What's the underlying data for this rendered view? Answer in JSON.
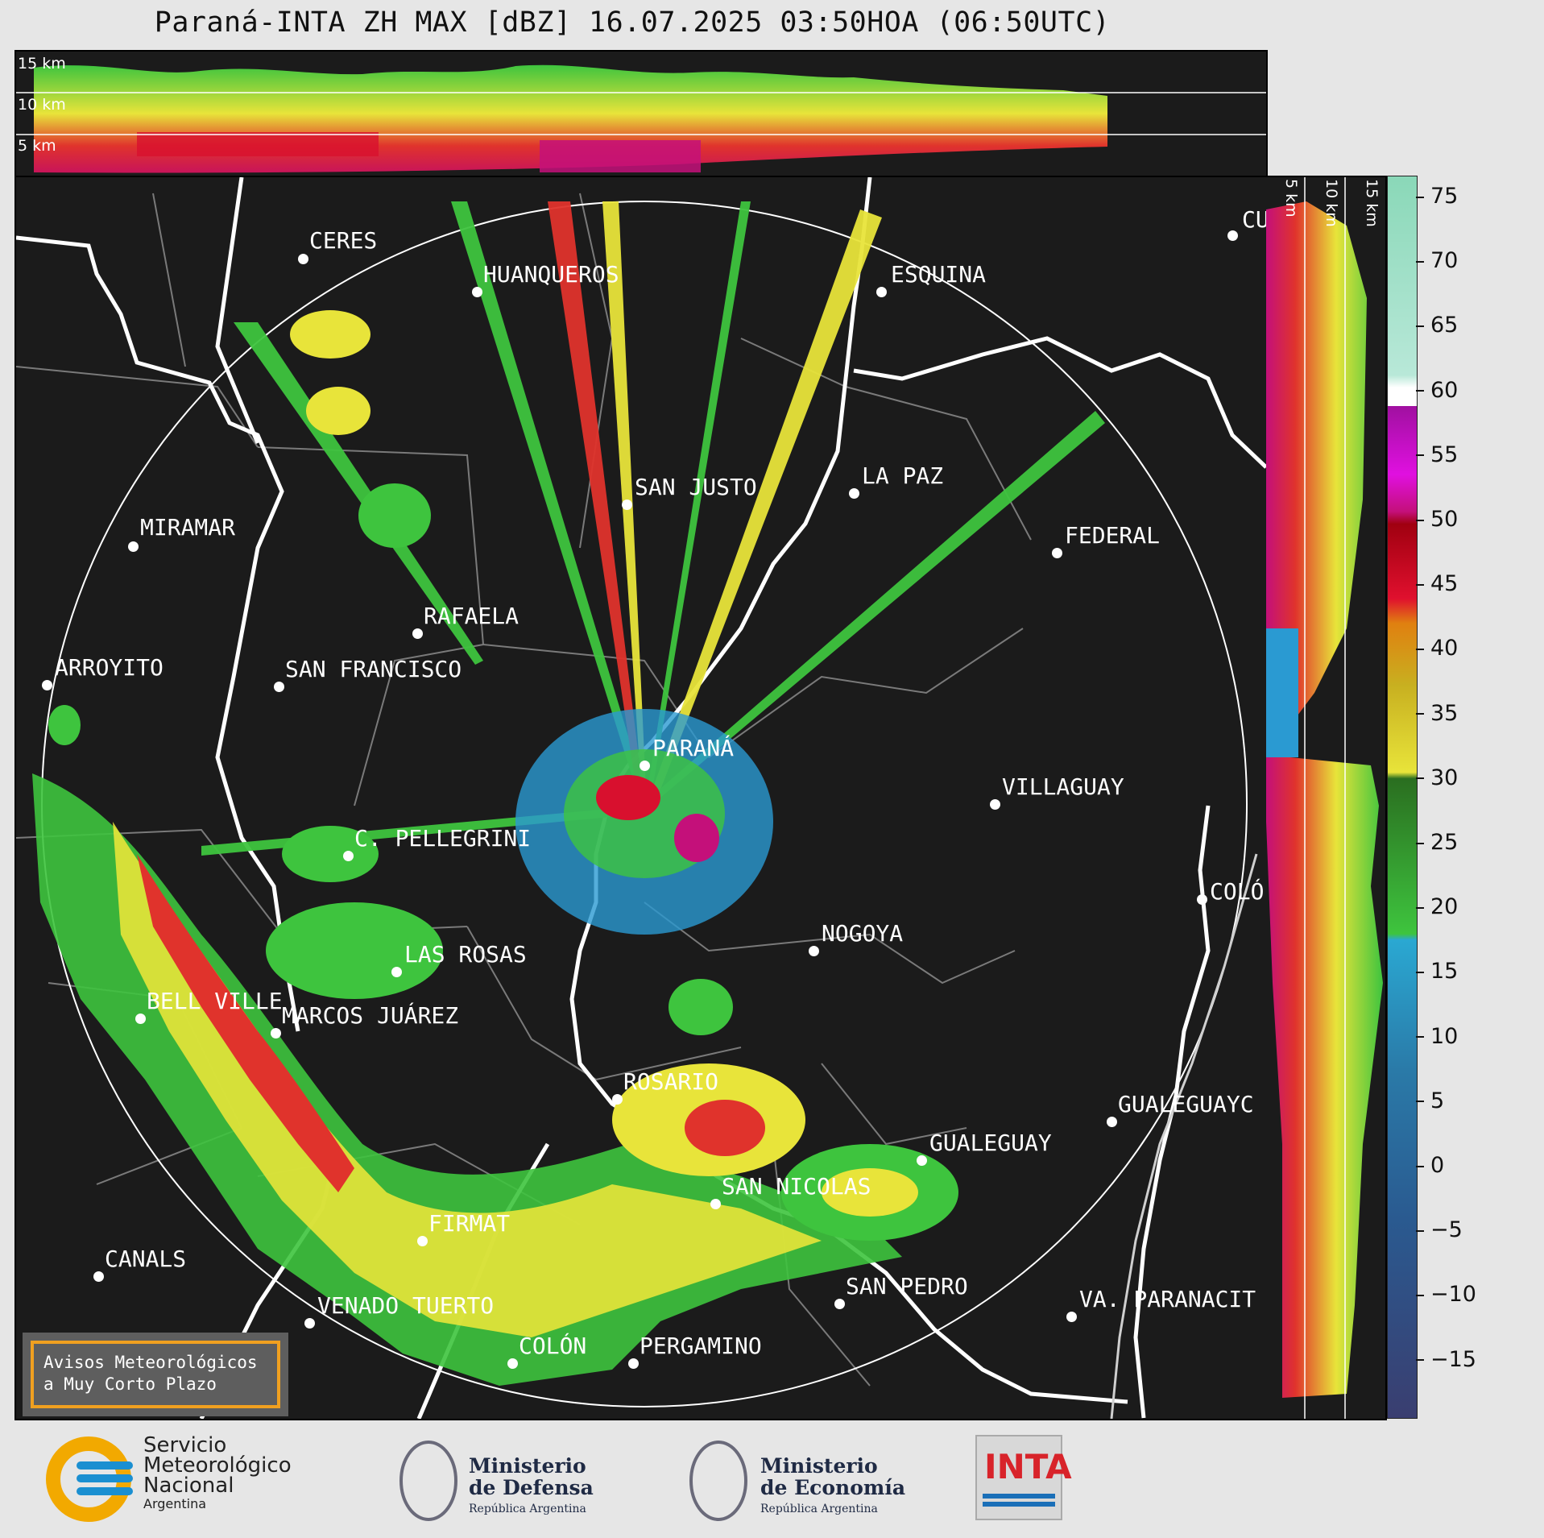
{
  "title": "Paraná-INTA ZH MAX [dBZ] 16.07.2025 03:50HOA (06:50UTC)",
  "height_labels_top": [
    "15 km",
    "10 km",
    "5 km"
  ],
  "height_labels_side": [
    "5 km",
    "10 km",
    "15 km"
  ],
  "colorbar": {
    "ticks": [
      75,
      70,
      65,
      60,
      55,
      50,
      45,
      40,
      35,
      30,
      25,
      20,
      15,
      10,
      5,
      0,
      "−5",
      "−10",
      "−15"
    ]
  },
  "cities": [
    {
      "name": "CERES"
    },
    {
      "name": "HUANQUEROS"
    },
    {
      "name": "ESQUINA"
    },
    {
      "name": "CU"
    },
    {
      "name": "SAN JUSTO"
    },
    {
      "name": "LA PAZ"
    },
    {
      "name": "MIRAMAR"
    },
    {
      "name": "FEDERAL"
    },
    {
      "name": "RAFAELA"
    },
    {
      "name": "ARROYITO"
    },
    {
      "name": "SAN FRANCISCO"
    },
    {
      "name": "PARANÁ"
    },
    {
      "name": "VILLAGUAY"
    },
    {
      "name": "C. PELLEGRINI"
    },
    {
      "name": "COLÓ"
    },
    {
      "name": "NOGOYA"
    },
    {
      "name": "LAS ROSAS"
    },
    {
      "name": "BELL VILLE"
    },
    {
      "name": "MARCOS JUÁREZ"
    },
    {
      "name": "ROSARIO"
    },
    {
      "name": "GUALEGUAYC"
    },
    {
      "name": "GUALEGUAY"
    },
    {
      "name": "SAN NICOLAS"
    },
    {
      "name": "FIRMAT"
    },
    {
      "name": "CANALS"
    },
    {
      "name": "SAN PEDRO"
    },
    {
      "name": "VENADO TUERTO"
    },
    {
      "name": "VA. PARANACIT"
    },
    {
      "name": "COLÓN"
    },
    {
      "name": "PERGAMINO"
    }
  ],
  "notice": {
    "line1": "Avisos Meteorológicos",
    "line2": "a Muy Corto Plazo"
  },
  "logos": {
    "smn": {
      "l1": "Servicio",
      "l2": "Meteorológico",
      "l3": "Nacional",
      "l4": "Argentina"
    },
    "defensa": {
      "l1": "Ministerio",
      "l2": "de Defensa",
      "l3": "República Argentina"
    },
    "economia": {
      "l1": "Ministerio",
      "l2": "de Economía",
      "l3": "República Argentina"
    },
    "inta": {
      "text": "INTA"
    }
  },
  "colors": {
    "background": "#1b1b1b",
    "accent_orange": "#f0a020",
    "inta_red": "#d8232a",
    "smn_blue": "#1a8fd1"
  }
}
